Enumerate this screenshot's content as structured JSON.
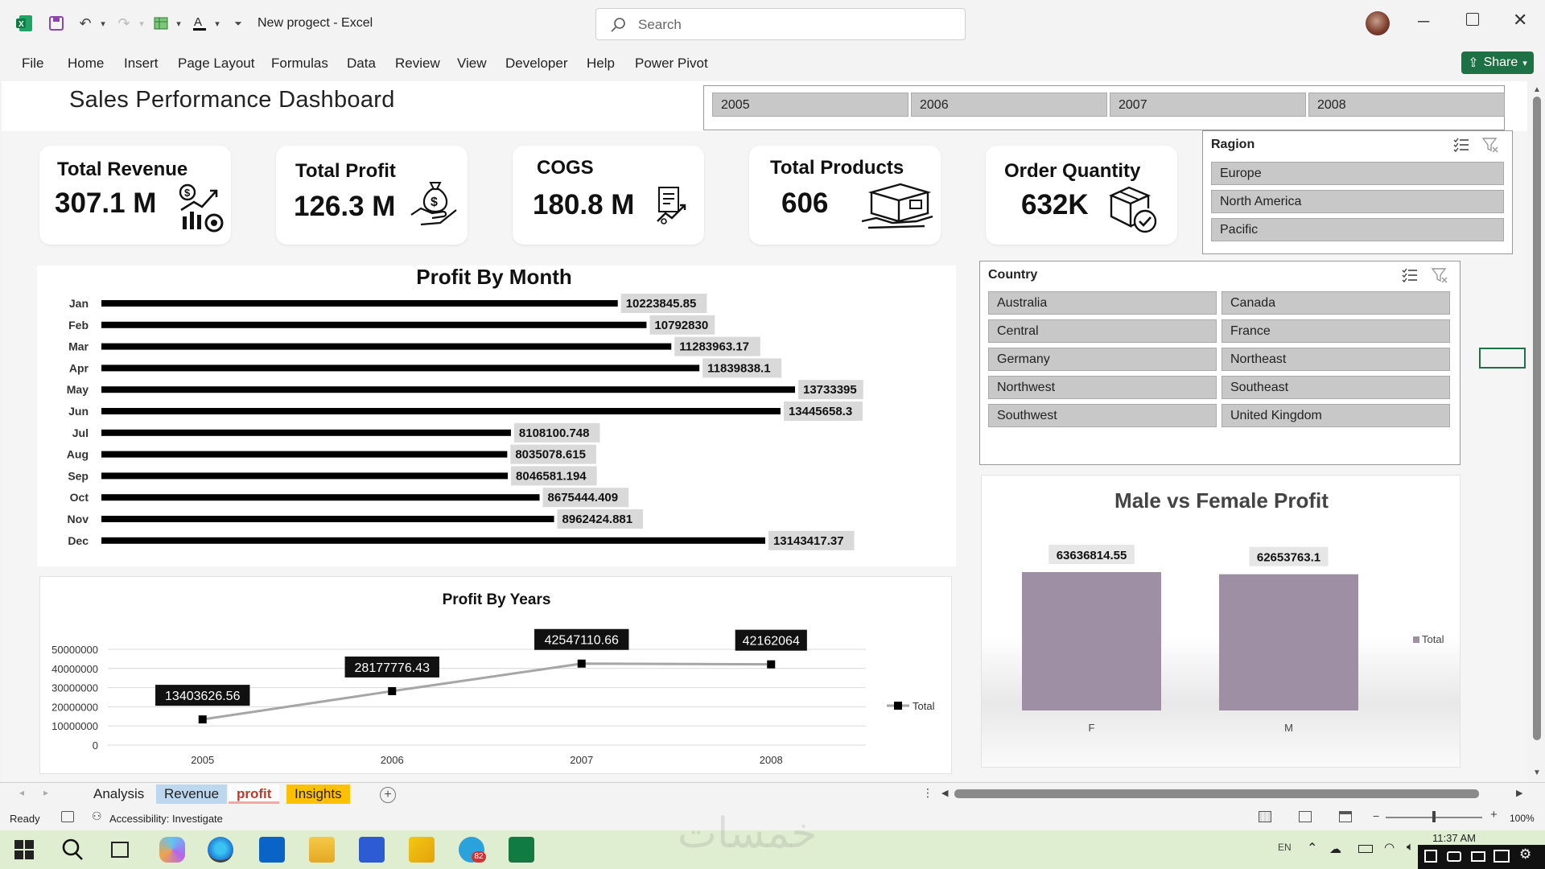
{
  "window": {
    "doc_title": "New progect  -  Excel",
    "search_placeholder": "Search"
  },
  "ribbon": {
    "tabs": [
      "File",
      "Home",
      "Insert",
      "Page Layout",
      "Formulas",
      "Data",
      "Review",
      "View",
      "Developer",
      "Help",
      "Power Pivot"
    ],
    "share_label": "Share"
  },
  "dashboard": {
    "title": "Sales Performance Dashboard",
    "year_slicer": [
      "2005",
      "2006",
      "2007",
      "2008"
    ],
    "kpis": [
      {
        "label": "Total Revenue",
        "value": "307.1 M",
        "icon": "revenue-growth-icon"
      },
      {
        "label": "Total Profit",
        "value": "126.3 M",
        "icon": "money-bag-hand-icon"
      },
      {
        "label": "COGS",
        "value": "180.8 M",
        "icon": "invoice-chart-icon"
      },
      {
        "label": "Total Products",
        "value": "606",
        "icon": "box-hand-icon"
      },
      {
        "label": "Order Quantity",
        "value": "632K",
        "icon": "box-check-icon"
      }
    ],
    "region_slicer": {
      "header": "Ragion",
      "items": [
        "Europe",
        "North America",
        "Pacific"
      ]
    },
    "country_slicer": {
      "header": "Country",
      "items": [
        "Australia",
        "Canada",
        "Central",
        "France",
        "Germany",
        "Northeast",
        "Northwest",
        "Southeast",
        "Southwest",
        "United Kingdom"
      ]
    }
  },
  "chart_data": [
    {
      "type": "bar",
      "orientation": "horizontal",
      "title": "Profit By Month",
      "categories": [
        "Jan",
        "Feb",
        "Mar",
        "Apr",
        "May",
        "Jun",
        "Jul",
        "Aug",
        "Sep",
        "Oct",
        "Nov",
        "Dec"
      ],
      "values": [
        10223845.85,
        10792830,
        11283963.17,
        11839838.1,
        13733395,
        13445658.3,
        8108100.748,
        8035078.615,
        8046581.194,
        8675444.409,
        8962424.881,
        13143417.37
      ],
      "labels": [
        "10223845.85",
        "10792830",
        "11283963.17",
        "11839838.1",
        "13733395",
        "13445658.3",
        "8108100.748",
        "8035078.615",
        "8046581.194",
        "8675444.409",
        "8962424.881",
        "13143417.37"
      ],
      "color": "#000000"
    },
    {
      "type": "line",
      "title": "Profit By Years",
      "categories": [
        "2005",
        "2006",
        "2007",
        "2008"
      ],
      "series": [
        {
          "name": "Total",
          "values": [
            13403626.56,
            28177776.43,
            42547110.66,
            42162064
          ]
        }
      ],
      "labels": [
        "13403626.56",
        "28177776.43",
        "42547110.66",
        "42162064"
      ],
      "yticks": [
        "50000000",
        "40000000",
        "30000000",
        "20000000",
        "10000000",
        "0"
      ],
      "ylim": [
        0,
        50000000
      ],
      "grid": true,
      "legend": "right",
      "color": "#a6a6a6"
    },
    {
      "type": "bar",
      "title": "Male vs Female Profit",
      "categories": [
        "F",
        "M"
      ],
      "series": [
        {
          "name": "Total",
          "values": [
            63636814.55,
            62653763.1
          ]
        }
      ],
      "labels": [
        "63636814.55",
        "62653763.1"
      ],
      "legend": "right",
      "color": "#9e8fa4"
    }
  ],
  "sheet_tabs": [
    "Analysis",
    "Revenue",
    "profit",
    "Insights"
  ],
  "status": {
    "ready": "Ready",
    "accessibility": "Accessibility: Investigate",
    "zoom": "100%"
  },
  "taskbar": {
    "time": "11:37 AM",
    "lang": "EN",
    "badge": "82"
  },
  "watermark": "خمسات"
}
